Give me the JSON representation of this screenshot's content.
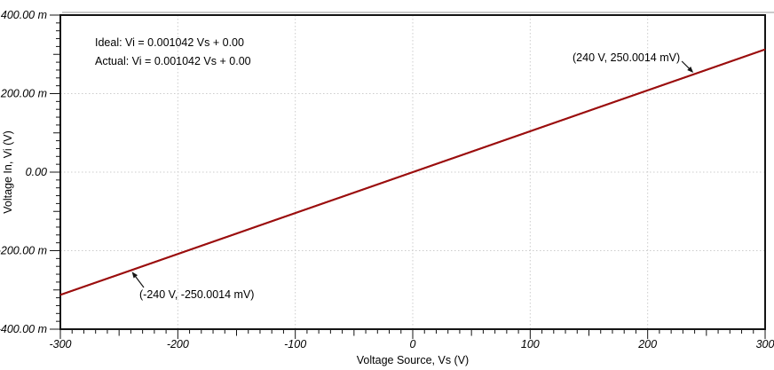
{
  "figure": {
    "background": "#ffffff",
    "axis_color": "#141414",
    "grid_color": "#cccccc",
    "highlight_color": "#b9b9b9"
  },
  "chart_data": {
    "type": "line",
    "title": "",
    "xlabel": "Voltage Source, Vs (V)",
    "ylabel": "Voltage In, Vi (V)",
    "xlim": [
      -300,
      300
    ],
    "ylim": [
      -0.4,
      0.4
    ],
    "x_ticks": {
      "major_step": 100,
      "medium_step": 50,
      "minor_step": 10,
      "major_values": [
        -300,
        -200,
        -100,
        0,
        100,
        200,
        300
      ],
      "major_labels": [
        "-300",
        "-200",
        "-100",
        "0",
        "100",
        "200",
        "300"
      ]
    },
    "y_ticks": {
      "major_step": 0.2,
      "medium_step": 0.1,
      "minor_step": 0.02,
      "major_values": [
        0.4,
        0.2,
        0,
        -0.2,
        -0.4
      ],
      "major_labels": [
        "400.00 m",
        "200.00 m",
        "0.00",
        "-200.00 m",
        "-400.00 m"
      ]
    },
    "grid": {
      "show": true,
      "style": "dotted",
      "major_only": true
    },
    "series": [
      {
        "name": "Ideal",
        "equation": "Vi = 0.001042 Vs + 0.00",
        "slope": 0.001042,
        "intercept": 0.0,
        "color": "#9b0e0e",
        "x": [
          -300,
          300
        ],
        "y": [
          -0.3126,
          0.3126
        ]
      },
      {
        "name": "Actual",
        "equation": "Vi = 0.001042 Vs + 0.00",
        "slope": 0.001042,
        "intercept": 0.0,
        "color": "#9b0e0e",
        "x": [
          -300,
          300
        ],
        "y": [
          -0.3126,
          0.3126
        ]
      }
    ],
    "equation_labels": {
      "ideal": "Ideal: Vi = 0.001042 Vs + 0.00",
      "actual": "Actual: Vi = 0.001042 Vs + 0.00"
    },
    "annotations": [
      {
        "text": "(240 V, 250.0014 mV)",
        "x": 240,
        "y": 0.2500014,
        "label_position": "above-left"
      },
      {
        "text": "(-240 V, -250.0014 mV)",
        "x": -240,
        "y": -0.2500014,
        "label_position": "below-right"
      }
    ]
  }
}
